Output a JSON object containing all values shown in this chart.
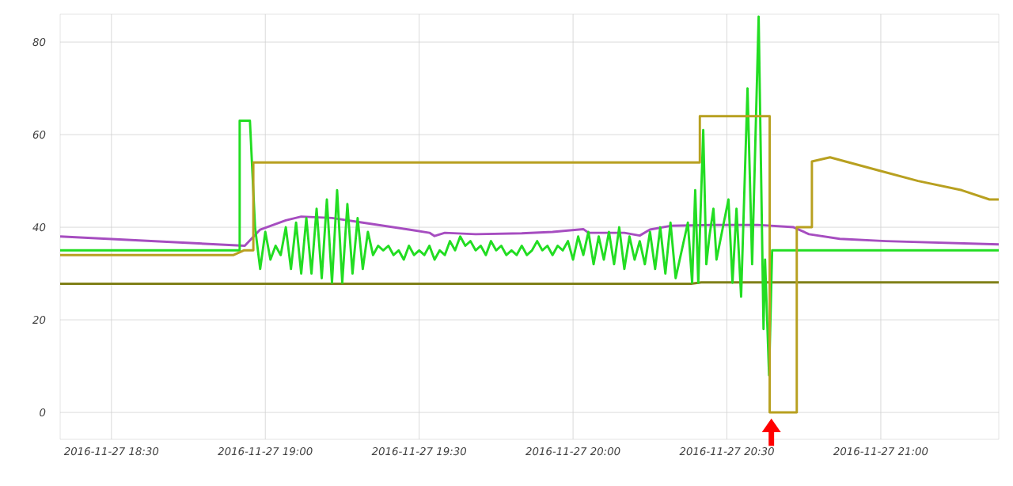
{
  "chart_data": {
    "type": "line",
    "grid": true,
    "xlim": [
      "2016-11-27T18:20",
      "2016-11-27T21:23"
    ],
    "ylim": [
      -5.8,
      86
    ],
    "xticks": [
      {
        "value": "2016-11-27T18:30",
        "label": "2016-11-27 18:30"
      },
      {
        "value": "2016-11-27T19:00",
        "label": "2016-11-27 19:00"
      },
      {
        "value": "2016-11-27T19:30",
        "label": "2016-11-27 19:30"
      },
      {
        "value": "2016-11-27T20:00",
        "label": "2016-11-27 20:00"
      },
      {
        "value": "2016-11-27T20:30",
        "label": "2016-11-27 20:30"
      },
      {
        "value": "2016-11-27T21:00",
        "label": "2016-11-27 21:00"
      }
    ],
    "yticks": [
      0,
      20,
      40,
      60,
      80
    ],
    "series": [
      {
        "color": "#808018",
        "x": [
          "2016-11-27T18:20",
          "2016-11-27T20:23",
          "2016-11-27T20:25",
          "2016-11-27T21:23"
        ],
        "values": [
          27.8,
          27.8,
          28.1,
          28.1
        ]
      },
      {
        "color": "#a64dc0",
        "x": [
          "2016-11-27T18:20",
          "2016-11-27T18:56",
          "2016-11-27T18:59",
          "2016-11-27T19:04",
          "2016-11-27T19:07",
          "2016-11-27T19:13",
          "2016-11-27T19:19",
          "2016-11-27T19:28",
          "2016-11-27T19:32",
          "2016-11-27T19:33",
          "2016-11-27T19:35",
          "2016-11-27T19:41",
          "2016-11-27T19:50",
          "2016-11-27T19:56",
          "2016-11-27T20:02",
          "2016-11-27T20:03",
          "2016-11-27T20:10",
          "2016-11-27T20:13",
          "2016-11-27T20:15",
          "2016-11-27T20:19",
          "2016-11-27T20:27",
          "2016-11-27T20:36",
          "2016-11-27T20:43",
          "2016-11-27T20:46",
          "2016-11-27T20:52",
          "2016-11-27T21:01",
          "2016-11-27T21:23"
        ],
        "values": [
          38,
          36,
          39.5,
          41.5,
          42.3,
          42,
          41,
          39.5,
          38.8,
          38.1,
          38.8,
          38.5,
          38.7,
          39,
          39.6,
          38.8,
          38.8,
          38.2,
          39.5,
          40.3,
          40.5,
          40.5,
          40,
          38.5,
          37.5,
          37,
          36.3
        ]
      },
      {
        "color": "#22dd22",
        "x": [
          "2016-11-27T18:20",
          "2016-11-27T18:55",
          "2016-11-27T18:55",
          "2016-11-27T18:57",
          "2016-11-27T18:58",
          "2016-11-27T18:59",
          "2016-11-27T19:00",
          "2016-11-27T19:01",
          "2016-11-27T19:02",
          "2016-11-27T19:03",
          "2016-11-27T19:04",
          "2016-11-27T19:05",
          "2016-11-27T19:06",
          "2016-11-27T19:07",
          "2016-11-27T19:08",
          "2016-11-27T19:09",
          "2016-11-27T19:10",
          "2016-11-27T19:11",
          "2016-11-27T19:12",
          "2016-11-27T19:13",
          "2016-11-27T19:14",
          "2016-11-27T19:15",
          "2016-11-27T19:16",
          "2016-11-27T19:17",
          "2016-11-27T19:18",
          "2016-11-27T19:19",
          "2016-11-27T19:20",
          "2016-11-27T19:21",
          "2016-11-27T19:22",
          "2016-11-27T19:23",
          "2016-11-27T19:24",
          "2016-11-27T19:25",
          "2016-11-27T19:26",
          "2016-11-27T19:27",
          "2016-11-27T19:28",
          "2016-11-27T19:29",
          "2016-11-27T19:30",
          "2016-11-27T19:31",
          "2016-11-27T19:32",
          "2016-11-27T19:33",
          "2016-11-27T19:34",
          "2016-11-27T19:35",
          "2016-11-27T19:36",
          "2016-11-27T19:37",
          "2016-11-27T19:38",
          "2016-11-27T19:39",
          "2016-11-27T19:40",
          "2016-11-27T19:41",
          "2016-11-27T19:42",
          "2016-11-27T19:43",
          "2016-11-27T19:44",
          "2016-11-27T19:45",
          "2016-11-27T19:46",
          "2016-11-27T19:47",
          "2016-11-27T19:48",
          "2016-11-27T19:49",
          "2016-11-27T19:50",
          "2016-11-27T19:51",
          "2016-11-27T19:52",
          "2016-11-27T19:53",
          "2016-11-27T19:54",
          "2016-11-27T19:55",
          "2016-11-27T19:56",
          "2016-11-27T19:57",
          "2016-11-27T19:58",
          "2016-11-27T19:59",
          "2016-11-27T20:00",
          "2016-11-27T20:01",
          "2016-11-27T20:02",
          "2016-11-27T20:03",
          "2016-11-27T20:04",
          "2016-11-27T20:05",
          "2016-11-27T20:06",
          "2016-11-27T20:07",
          "2016-11-27T20:08",
          "2016-11-27T20:09",
          "2016-11-27T20:10",
          "2016-11-27T20:11",
          "2016-11-27T20:12",
          "2016-11-27T20:13",
          "2016-11-27T20:14",
          "2016-11-27T20:15",
          "2016-11-27T20:16",
          "2016-11-27T20:17",
          "2016-11-27T20:18",
          "2016-11-27T20:19",
          "2016-11-27T20:20",
          "2016-11-27T20:22:23",
          "2016-11-27T20:23:13",
          "2016-11-27T20:23:49",
          "2016-11-27T20:24:25",
          "2016-11-27T20:25:23",
          "2016-11-27T20:25:59",
          "2016-11-27T20:26:35",
          "2016-11-27T20:27:22",
          "2016-11-27T20:27:58",
          "2016-11-27T20:29:13",
          "2016-11-27T20:30:18",
          "2016-11-27T20:31:05",
          "2016-11-27T20:31:52",
          "2016-11-27T20:32:46",
          "2016-11-27T20:34:01",
          "2016-11-27T20:34:55",
          "2016-11-27T20:36:11",
          "2016-11-27T20:37:08",
          "2016-11-27T20:37:26",
          "2016-11-27T20:38:13",
          "2016-11-27T20:38:49",
          "2016-11-27T21:23"
        ],
        "values": [
          35,
          35,
          63,
          63,
          40,
          31,
          39,
          33,
          36,
          34,
          40,
          31,
          41,
          30,
          42,
          30,
          44,
          29,
          46,
          28,
          48,
          28,
          45,
          30,
          42,
          31,
          39,
          34,
          36,
          35,
          36,
          34,
          35,
          33,
          36,
          34,
          35,
          34,
          36,
          33,
          35,
          34,
          37,
          35,
          38,
          36,
          37,
          35,
          36,
          34,
          37,
          35,
          36,
          34,
          35,
          34,
          36,
          34,
          35,
          37,
          35,
          36,
          34,
          36,
          35,
          37,
          33,
          38,
          34,
          39,
          32,
          38,
          33,
          39,
          32,
          40,
          31,
          38,
          33,
          37,
          32,
          39,
          31,
          40,
          30,
          41,
          29,
          41,
          28,
          48,
          28,
          61,
          32,
          38,
          44,
          33,
          40,
          46,
          28,
          44,
          25,
          70,
          32,
          85.5,
          18,
          33,
          8,
          35,
          35
        ]
      },
      {
        "color": "#b8a020",
        "x": [
          "2016-11-27T18:20",
          "2016-11-27T18:53:49",
          "2016-11-27T18:55:48",
          "2016-11-27T18:57:40",
          "2016-11-27T18:57:40",
          "2016-11-27T20:24:43",
          "2016-11-27T20:24:43",
          "2016-11-27T20:38:20",
          "2016-11-27T20:38:20",
          "2016-11-27T20:43:37",
          "2016-11-27T20:43:37",
          "2016-11-27T20:46:34",
          "2016-11-27T20:46:34",
          "2016-11-27T20:50:06",
          "2016-11-27T20:59:49",
          "2016-11-27T21:07:16",
          "2016-11-27T21:15:47",
          "2016-11-27T21:21:11",
          "2016-11-27T21:23"
        ],
        "values": [
          34,
          34,
          35,
          35,
          54,
          54,
          64,
          64,
          0,
          0,
          40,
          40,
          54.2,
          55.1,
          52.2,
          50,
          48,
          46,
          46
        ]
      }
    ]
  }
}
